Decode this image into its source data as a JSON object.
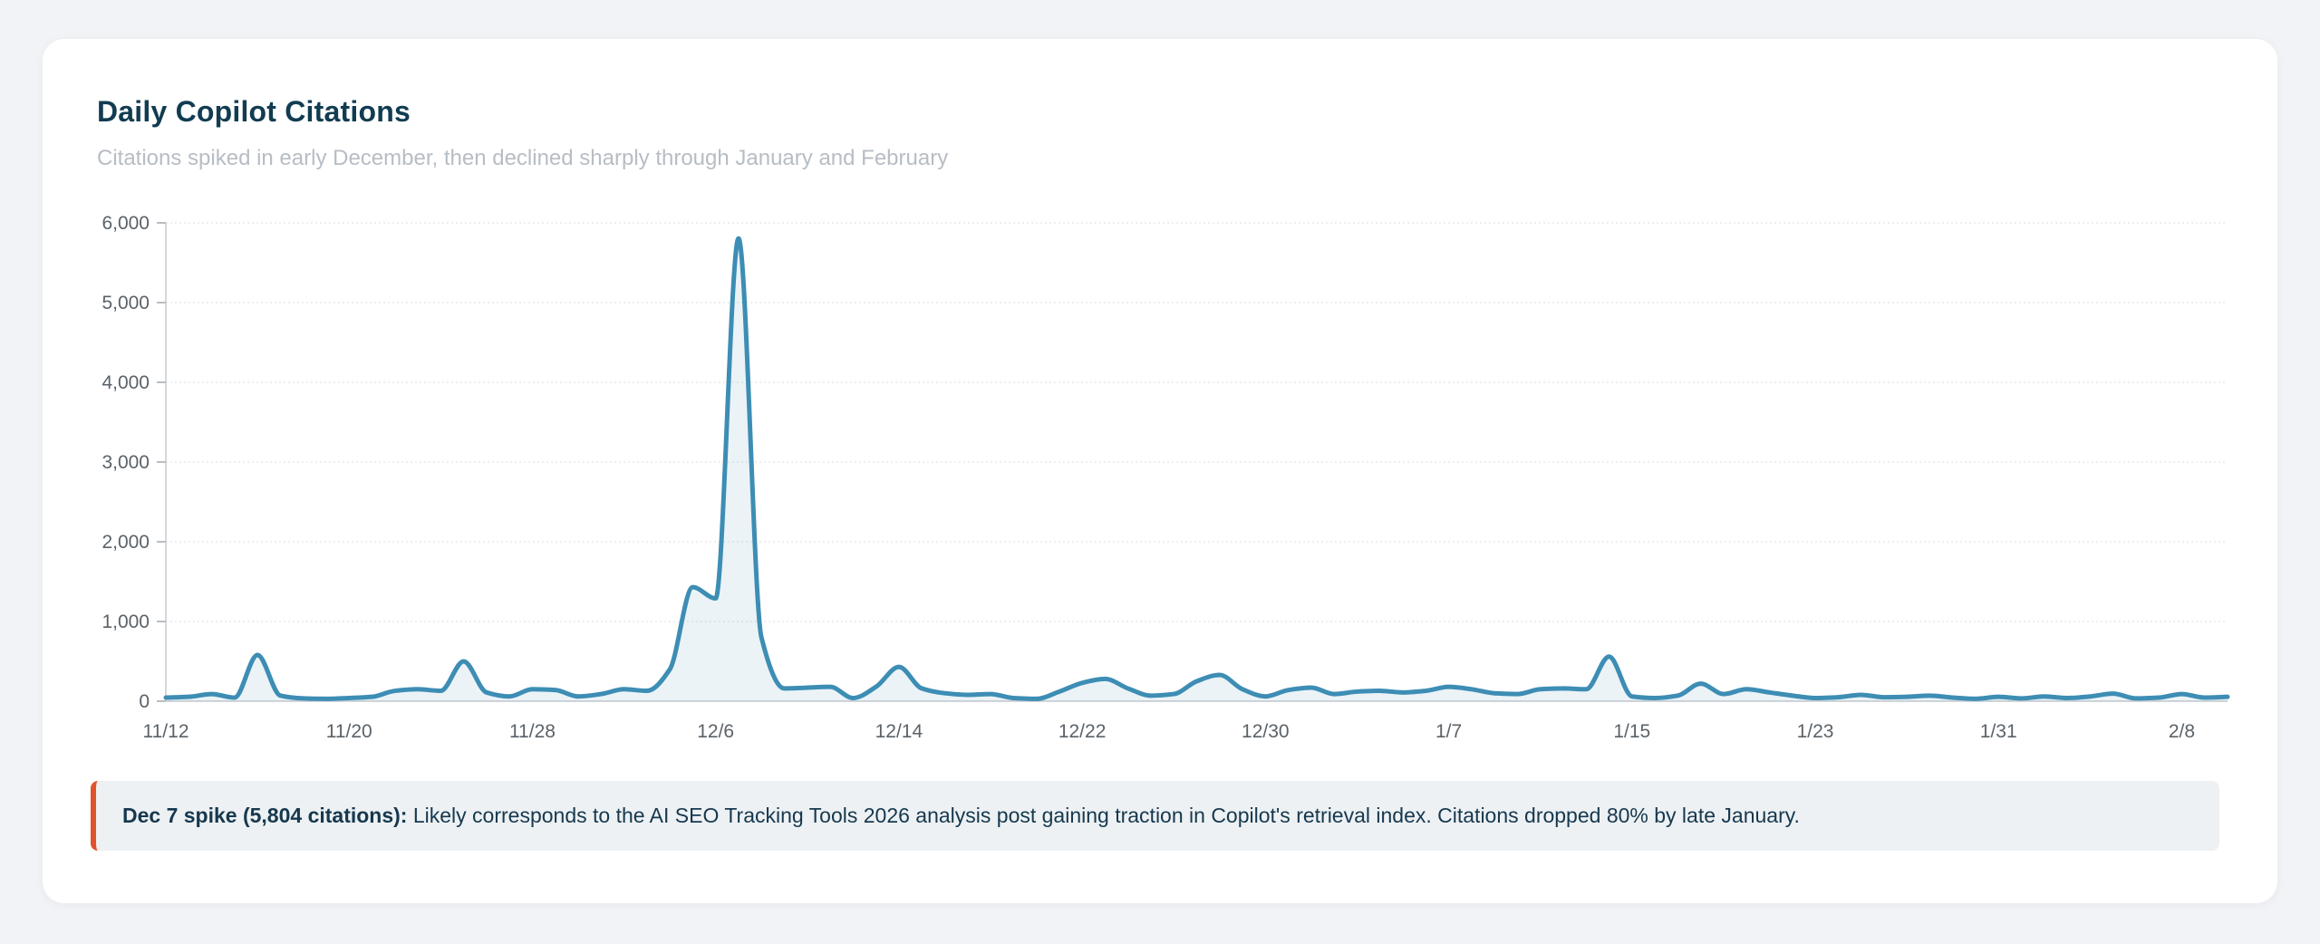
{
  "card": {
    "title": "Daily Copilot Citations",
    "subtitle": "Citations spiked in early December, then declined sharply through January and February"
  },
  "annotation": {
    "bold": "Dec 7 spike (5,804 citations):",
    "text": " Likely corresponds to the AI SEO Tracking Tools 2026 analysis post gaining traction in Copilot's retrieval index. Citations dropped 80% by late January.",
    "accent_color": "#e0532b",
    "background_color": "#edf1f3"
  },
  "chart_data": {
    "type": "area",
    "title": "Daily Copilot Citations",
    "subtitle": "Citations spiked in early December, then declined sharply through January and February",
    "xlabel": "",
    "ylabel": "",
    "ylim": [
      0,
      6000
    ],
    "yticks": [
      0,
      1000,
      2000,
      3000,
      4000,
      5000,
      6000
    ],
    "ytick_labels": [
      "0",
      "1,000",
      "2,000",
      "3,000",
      "4,000",
      "5,000",
      "6,000"
    ],
    "xtick_labels": [
      "11/12",
      "11/20",
      "11/28",
      "12/6",
      "12/14",
      "12/22",
      "12/30",
      "1/7",
      "1/15",
      "1/23",
      "1/31",
      "2/8"
    ],
    "xtick_day_interval": 8,
    "grid": "horizontal",
    "legend": "none",
    "line_color": "#3d8db4",
    "fill_color": "rgba(61,141,180,0.10)",
    "peak": {
      "date": "12/7",
      "value": 5804
    },
    "x": [
      "11/12",
      "11/13",
      "11/14",
      "11/15",
      "11/16",
      "11/17",
      "11/18",
      "11/19",
      "11/20",
      "11/21",
      "11/22",
      "11/23",
      "11/24",
      "11/25",
      "11/26",
      "11/27",
      "11/28",
      "11/29",
      "11/30",
      "12/1",
      "12/2",
      "12/3",
      "12/4",
      "12/5",
      "12/6",
      "12/7",
      "12/8",
      "12/9",
      "12/10",
      "12/11",
      "12/12",
      "12/13",
      "12/14",
      "12/15",
      "12/16",
      "12/17",
      "12/18",
      "12/19",
      "12/20",
      "12/21",
      "12/22",
      "12/23",
      "12/24",
      "12/25",
      "12/26",
      "12/27",
      "12/28",
      "12/29",
      "12/30",
      "12/31",
      "1/1",
      "1/2",
      "1/3",
      "1/4",
      "1/5",
      "1/6",
      "1/7",
      "1/8",
      "1/9",
      "1/10",
      "1/11",
      "1/12",
      "1/13",
      "1/14",
      "1/15",
      "1/16",
      "1/17",
      "1/18",
      "1/19",
      "1/20",
      "1/21",
      "1/22",
      "1/23",
      "1/24",
      "1/25",
      "1/26",
      "1/27",
      "1/28",
      "1/29",
      "1/30",
      "1/31",
      "2/1",
      "2/2",
      "2/3",
      "2/4",
      "2/5",
      "2/6",
      "2/7",
      "2/8",
      "2/9",
      "2/10"
    ],
    "values": [
      45,
      55,
      90,
      45,
      580,
      70,
      35,
      30,
      40,
      55,
      130,
      150,
      130,
      500,
      110,
      60,
      150,
      140,
      60,
      90,
      150,
      130,
      400,
      1430,
      1290,
      5804,
      800,
      160,
      170,
      180,
      40,
      180,
      430,
      160,
      100,
      80,
      90,
      40,
      30,
      120,
      230,
      280,
      160,
      70,
      90,
      250,
      330,
      150,
      60,
      140,
      170,
      90,
      120,
      130,
      110,
      130,
      180,
      150,
      100,
      90,
      150,
      160,
      150,
      560,
      60,
      40,
      70,
      220,
      90,
      150,
      110,
      70,
      40,
      50,
      80,
      50,
      55,
      70,
      45,
      30,
      55,
      35,
      60,
      40,
      60,
      95,
      35,
      45,
      90,
      45,
      55
    ]
  }
}
